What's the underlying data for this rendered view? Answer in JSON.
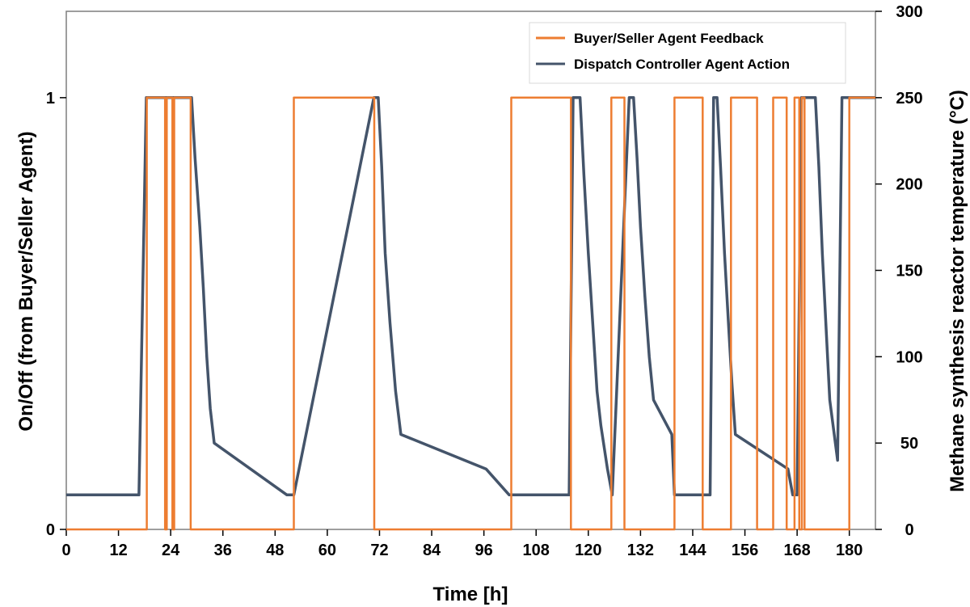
{
  "chart_data": {
    "type": "line",
    "title": "",
    "xlabel": "Time [h]",
    "ylabel_left": "On/Off (from Buyer/Seller Agent)",
    "ylabel_right": "Methane synthesis reactor temperature (°C)",
    "xlim": [
      0,
      186
    ],
    "x_ticks": [
      0,
      12,
      24,
      36,
      48,
      60,
      72,
      84,
      96,
      108,
      120,
      132,
      144,
      156,
      168,
      180
    ],
    "ylim_left": [
      0,
      1.2
    ],
    "y_ticks_left": [
      0,
      1
    ],
    "ylim_right": [
      0,
      300
    ],
    "y_ticks_right": [
      0,
      50,
      100,
      150,
      200,
      250,
      300
    ],
    "grid": false,
    "legend_position": "top-right",
    "series": [
      {
        "name": "Buyer/Seller Agent Feedback",
        "axis": "left",
        "color": "#ed7d31",
        "x": [
          0,
          18.5,
          18.5,
          22.7,
          22.7,
          23.1,
          23.1,
          24.4,
          24.4,
          24.8,
          24.8,
          28.6,
          28.6,
          29.0,
          29.0,
          52.3,
          52.3,
          70.8,
          70.8,
          102.3,
          102.3,
          116.0,
          116.0,
          125.3,
          125.3,
          128.3,
          128.3,
          139.8,
          139.8,
          146.3,
          146.3,
          152.8,
          152.8,
          158.8,
          158.8,
          162.5,
          162.5,
          165.6,
          165.6,
          167.4,
          167.4,
          168.5,
          168.5,
          169.1,
          169.1,
          169.7,
          169.7,
          180.0,
          180.0,
          186
        ],
        "y": [
          0,
          0,
          1,
          1,
          0,
          0,
          1,
          1,
          0,
          0,
          1,
          1,
          0,
          0,
          0,
          0,
          1,
          1,
          0,
          0,
          1,
          1,
          0,
          0,
          1,
          1,
          0,
          0,
          1,
          1,
          0,
          0,
          1,
          1,
          0,
          0,
          1,
          1,
          0,
          0,
          1,
          1,
          0,
          0,
          1,
          1,
          0,
          0,
          1,
          1
        ]
      },
      {
        "name": "Dispatch Controller Agent Action",
        "axis": "right",
        "color": "#44546a",
        "x": [
          0,
          16.7,
          18.4,
          28.8,
          29.6,
          30.7,
          31.5,
          32.3,
          33.1,
          34.0,
          50.7,
          52.3,
          70.7,
          71.7,
          72.5,
          73.3,
          74.4,
          75.7,
          76.9,
          96.5,
          101.8,
          115.6,
          116.5,
          117.3,
          118.1,
          119.0,
          120.0,
          121.0,
          122.0,
          122.9,
          124.4,
          125.5,
          129.4,
          130.4,
          131.2,
          132.0,
          133.0,
          134.0,
          135.0,
          139.2,
          139.8,
          148.0,
          148.8,
          149.6,
          150.4,
          151.3,
          152.2,
          153.0,
          153.8,
          165.9,
          167.0,
          168.0,
          169.0,
          170.6,
          171.4,
          172.2,
          173.0,
          173.8,
          174.6,
          175.5,
          177.3,
          178.3,
          180.3,
          186
        ],
        "y": [
          20,
          20,
          250,
          250,
          215,
          175,
          140,
          100,
          70,
          50,
          20,
          20,
          250,
          250,
          210,
          160,
          120,
          80,
          55,
          35,
          20,
          20,
          250,
          250,
          250,
          205,
          160,
          120,
          80,
          60,
          35,
          20,
          250,
          250,
          215,
          175,
          135,
          100,
          75,
          55,
          20,
          20,
          250,
          250,
          210,
          160,
          120,
          85,
          55,
          35,
          20,
          20,
          250,
          250,
          250,
          250,
          210,
          160,
          120,
          75,
          40,
          250,
          250,
          250
        ]
      }
    ]
  }
}
